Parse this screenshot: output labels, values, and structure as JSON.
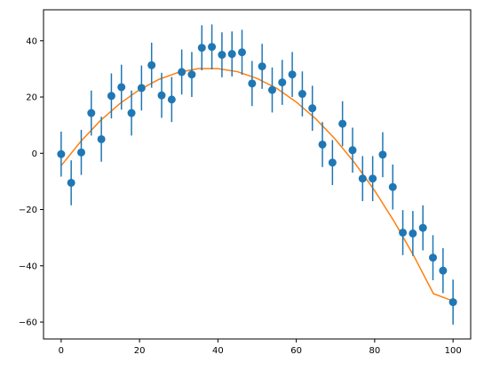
{
  "chart_data": {
    "type": "scatter",
    "title": "",
    "xlabel": "",
    "ylabel": "",
    "xlim": [
      -4.5,
      104.5
    ],
    "ylim": [
      -66,
      51
    ],
    "grid": false,
    "x_ticks": [
      0,
      20,
      40,
      60,
      80,
      100
    ],
    "y_ticks": [
      -60,
      -40,
      -20,
      0,
      20,
      40
    ],
    "x_tick_labels": [
      "0",
      "20",
      "40",
      "60",
      "80",
      "100"
    ],
    "y_tick_labels": [
      "−60",
      "−40",
      "−20",
      "0",
      "20",
      "40"
    ],
    "colors": {
      "points": "#1f77b4",
      "fit": "#ff7f0e"
    },
    "series": [
      {
        "kind": "errorbar",
        "x": [
          0,
          2.56,
          5.13,
          7.69,
          10.26,
          12.82,
          15.38,
          17.95,
          20.51,
          23.08,
          25.64,
          28.21,
          30.77,
          33.33,
          35.9,
          38.46,
          41.03,
          43.59,
          46.15,
          48.72,
          51.28,
          53.85,
          56.41,
          58.97,
          61.54,
          64.1,
          66.67,
          69.23,
          71.79,
          74.36,
          76.92,
          79.49,
          82.05,
          84.62,
          87.18,
          89.74,
          92.31,
          94.87,
          97.44,
          100
        ],
        "y": [
          -0.3,
          -10.5,
          0.3,
          14.3,
          5.0,
          20.4,
          23.5,
          14.3,
          23.2,
          31.3,
          20.6,
          19.1,
          28.9,
          28.0,
          37.5,
          37.8,
          35.0,
          35.3,
          35.9,
          24.8,
          30.9,
          22.5,
          25.2,
          28.0,
          21.1,
          16.0,
          3.1,
          -3.3,
          10.5,
          1.1,
          -9.0,
          -9.0,
          -0.5,
          -12.0,
          -28.2,
          -28.5,
          -26.5,
          -37.1,
          -41.7,
          -52.9
        ],
        "yerr": 8
      },
      {
        "kind": "line",
        "x": [
          0,
          5,
          10,
          15,
          20,
          25,
          30,
          35,
          40,
          45,
          50,
          55,
          60,
          65,
          70,
          75,
          80,
          85,
          90,
          95,
          100
        ],
        "y": [
          -4.4,
          4.2,
          11.6,
          17.7,
          22.6,
          26.3,
          28.8,
          30.1,
          30.1,
          29.0,
          26.6,
          23.1,
          18.2,
          12.2,
          4.9,
          -3.6,
          -13.3,
          -24.3,
          -36.5,
          -49.9,
          -52.5
        ]
      }
    ]
  }
}
